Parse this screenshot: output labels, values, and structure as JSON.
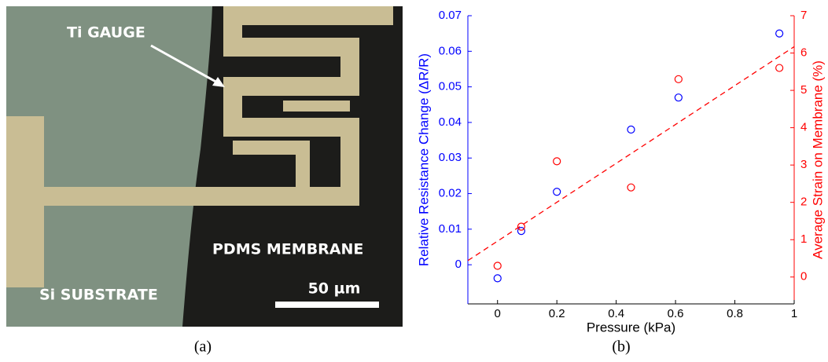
{
  "panel_a": {
    "labels": {
      "gauge": "Ti GAUGE",
      "membrane": "PDMS MEMBRANE",
      "substrate": "Si SUBSTRATE",
      "scale": "50 µm"
    },
    "caption": "(a)"
  },
  "panel_b": {
    "caption": "(b)"
  },
  "chart_data": {
    "type": "scatter",
    "xlabel": "Pressure (kPa)",
    "ylabel": "Relative Resistance Change (ΔR/R)",
    "y2label": "Average Strain on Membrane (%)",
    "xlim": [
      -0.1,
      1
    ],
    "xticks": [
      0,
      0.2,
      0.4,
      0.6,
      0.8,
      1
    ],
    "ylim": [
      -0.011,
      0.07
    ],
    "yticks": [
      0,
      0.01,
      0.02,
      0.03,
      0.04,
      0.05,
      0.06,
      0.07
    ],
    "y2lim": [
      -0.72,
      7
    ],
    "y2ticks": [
      0,
      1,
      2,
      3,
      4,
      5,
      6,
      7
    ],
    "ycolor": "#0000ff",
    "y2color": "#ff0000",
    "grid": false,
    "series": [
      {
        "color": "#0000ff",
        "x": [
          0,
          0.08,
          0.2,
          0.45,
          0.61,
          0.95
        ],
        "values": [
          -0.0038,
          0.0095,
          0.0205,
          0.038,
          0.047,
          0.065
        ]
      },
      {
        "color": "#ff0000",
        "axis": "y2",
        "x": [
          0,
          0.08,
          0.2,
          0.45,
          0.61,
          0.95
        ],
        "values": [
          0.3,
          1.35,
          3.1,
          2.4,
          5.3,
          5.6
        ]
      },
      {
        "color": "#ff0000",
        "axis": "y2",
        "style": "dashed",
        "x": [
          -0.1,
          1
        ],
        "values": [
          0.44,
          6.17
        ]
      }
    ]
  }
}
